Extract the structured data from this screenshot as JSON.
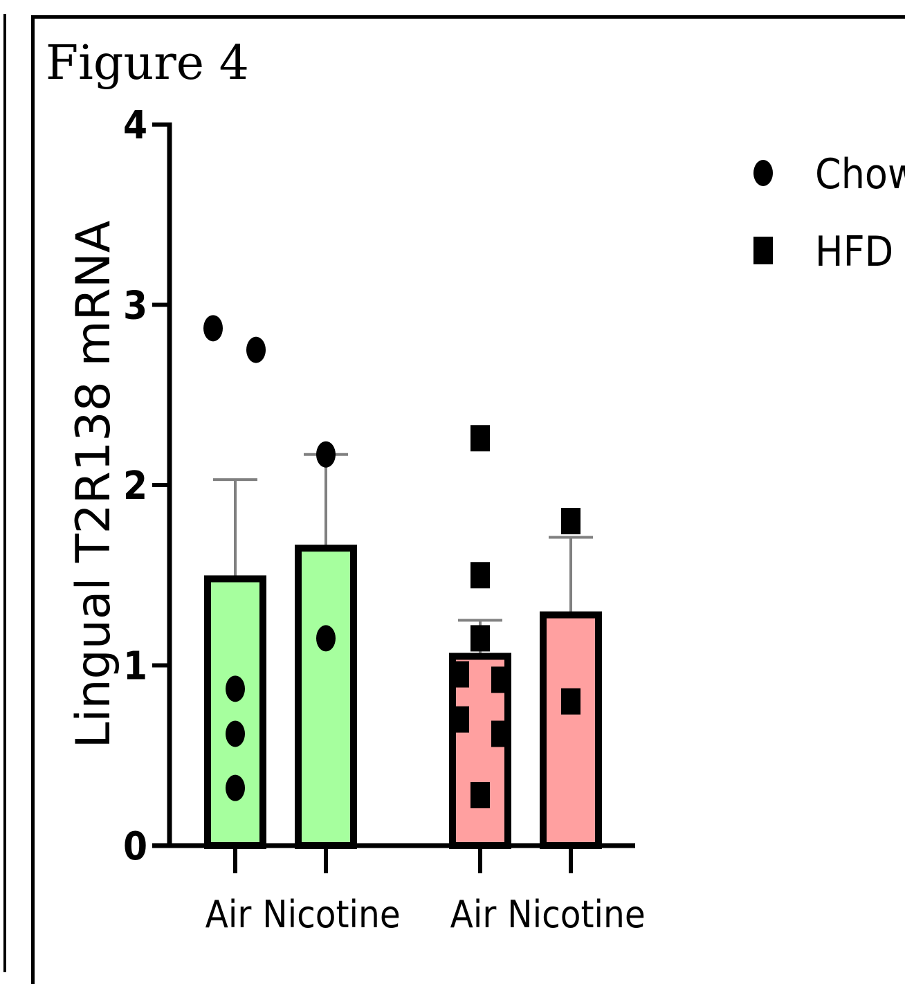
{
  "figure_title": "Figure 4",
  "chart_data": {
    "type": "bar",
    "title": "",
    "xlabel": "",
    "ylabel": "Lingual T2R138 mRNA",
    "ylim": [
      0,
      4
    ],
    "yticks": [
      "0",
      "1",
      "2",
      "3",
      "4"
    ],
    "categories": [
      "Air",
      "Nicotine",
      "Air",
      "Nicotine"
    ],
    "groups": [
      {
        "name": "Chow",
        "marker": "circle",
        "color": "#a6ff9e"
      },
      {
        "name": "HFD",
        "marker": "square",
        "color": "#ffa0a0"
      }
    ],
    "bars": [
      {
        "label": "Air",
        "group": "Chow",
        "value": 1.48,
        "error": 0.55,
        "points": [
          2.87,
          2.75,
          0.87,
          0.62,
          0.32
        ]
      },
      {
        "label": "Nicotine",
        "group": "Chow",
        "value": 1.65,
        "error": 0.52,
        "points": [
          2.17,
          1.15
        ]
      },
      {
        "label": "Air",
        "group": "HFD",
        "value": 1.05,
        "error": 0.2,
        "points": [
          2.26,
          1.5,
          1.15,
          0.95,
          0.92,
          0.7,
          0.62,
          0.28
        ]
      },
      {
        "label": "Nicotine",
        "group": "HFD",
        "value": 1.28,
        "error": 0.43,
        "points": [
          1.8,
          0.8
        ]
      }
    ],
    "legend": [
      "Chow",
      "HFD"
    ],
    "legend_position": "top-right",
    "grid": false
  }
}
